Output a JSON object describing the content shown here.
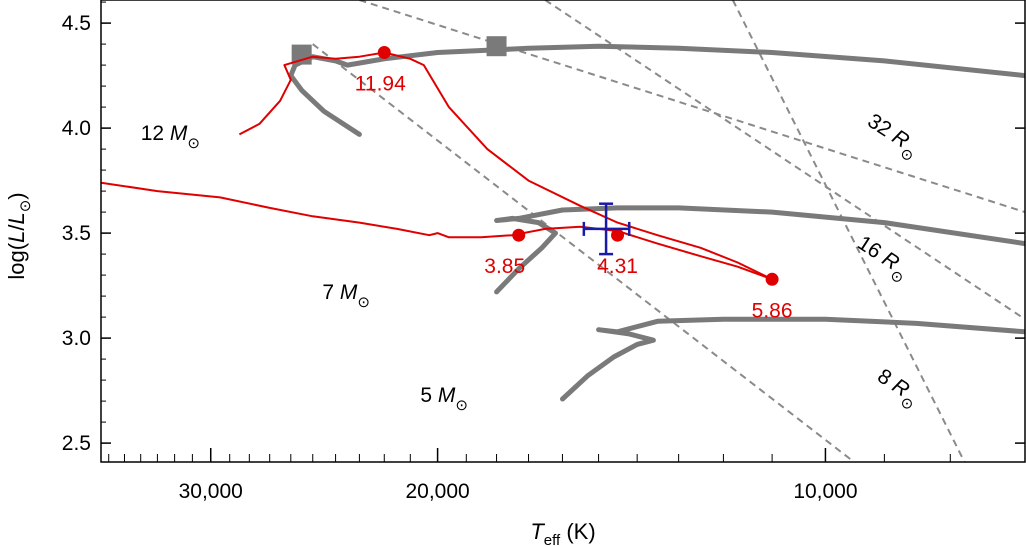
{
  "chart_data": {
    "type": "line",
    "xlabel": "T_eff (K)",
    "ylabel": "log(L/L_⊙)",
    "x_scale": "log",
    "x_reversed": true,
    "xlim": [
      36500,
      7000
    ],
    "ylim": [
      2.41,
      4.61
    ],
    "x_ticks": [
      {
        "value": 30000,
        "label": "30,000"
      },
      {
        "value": 20000,
        "label": "20,000"
      },
      {
        "value": 10000,
        "label": "10,000"
      }
    ],
    "y_ticks": [
      {
        "value": 2.5,
        "label": "2.5"
      },
      {
        "value": 3.0,
        "label": "3.0"
      },
      {
        "value": 3.5,
        "label": "3.5"
      },
      {
        "value": 4.0,
        "label": "4.0"
      },
      {
        "value": 4.5,
        "label": "4.5"
      }
    ],
    "tracks": [
      {
        "mass_label": "12",
        "points": [
          [
            23000,
            3.97
          ],
          [
            24500,
            4.08
          ],
          [
            25500,
            4.18
          ],
          [
            26000,
            4.25
          ],
          [
            25800,
            4.3
          ],
          [
            25000,
            4.34
          ],
          [
            24000,
            4.32
          ],
          [
            23500,
            4.3
          ],
          [
            22000,
            4.33
          ],
          [
            20000,
            4.36
          ],
          [
            17000,
            4.38
          ],
          [
            15000,
            4.39
          ],
          [
            13000,
            4.38
          ],
          [
            11000,
            4.36
          ],
          [
            9000,
            4.32
          ],
          [
            7000,
            4.25
          ]
        ],
        "squares": [
          [
            25500,
            4.35
          ],
          [
            18000,
            4.39
          ]
        ]
      },
      {
        "mass_label": "7",
        "points": [
          [
            18000,
            3.22
          ],
          [
            17300,
            3.33
          ],
          [
            16600,
            3.43
          ],
          [
            16200,
            3.5
          ],
          [
            16700,
            3.55
          ],
          [
            17500,
            3.57
          ],
          [
            18000,
            3.56
          ],
          [
            17300,
            3.57
          ],
          [
            16000,
            3.61
          ],
          [
            14500,
            3.62
          ],
          [
            13000,
            3.62
          ],
          [
            11000,
            3.6
          ],
          [
            9000,
            3.55
          ],
          [
            7000,
            3.45
          ]
        ],
        "squares": []
      },
      {
        "mass_label": "5",
        "points": [
          [
            16000,
            2.71
          ],
          [
            15300,
            2.82
          ],
          [
            14600,
            2.91
          ],
          [
            14000,
            2.97
          ],
          [
            13600,
            2.99
          ],
          [
            14200,
            3.02
          ],
          [
            15000,
            3.04
          ],
          [
            14500,
            3.03
          ],
          [
            13500,
            3.08
          ],
          [
            12000,
            3.09
          ],
          [
            10000,
            3.09
          ],
          [
            8500,
            3.07
          ],
          [
            7000,
            3.03
          ]
        ],
        "squares": []
      }
    ],
    "binary_tracks": [
      {
        "points": [
          [
            28500,
            3.97
          ],
          [
            27500,
            4.02
          ],
          [
            26500,
            4.13
          ],
          [
            26000,
            4.23
          ],
          [
            26300,
            4.3
          ],
          [
            25000,
            4.34
          ],
          [
            24000,
            4.33
          ],
          [
            23000,
            4.34
          ],
          [
            22000,
            4.36
          ],
          [
            21000,
            4.33
          ],
          [
            20500,
            4.3
          ],
          [
            19600,
            4.1
          ],
          [
            18300,
            3.9
          ],
          [
            17000,
            3.75
          ],
          [
            15500,
            3.63
          ],
          [
            14500,
            3.55
          ],
          [
            13500,
            3.49
          ],
          [
            12500,
            3.43
          ],
          [
            11700,
            3.36
          ],
          [
            11000,
            3.28
          ]
        ]
      },
      {
        "points": [
          [
            36500,
            3.74
          ],
          [
            33000,
            3.7
          ],
          [
            29500,
            3.67
          ],
          [
            27000,
            3.62
          ],
          [
            25000,
            3.58
          ],
          [
            23000,
            3.55
          ],
          [
            21500,
            3.52
          ],
          [
            20300,
            3.49
          ],
          [
            20000,
            3.5
          ],
          [
            19600,
            3.48
          ],
          [
            18500,
            3.48
          ],
          [
            17500,
            3.49
          ],
          [
            16500,
            3.52
          ],
          [
            15500,
            3.53
          ],
          [
            14500,
            3.51
          ],
          [
            13500,
            3.45
          ],
          [
            12500,
            3.39
          ],
          [
            11700,
            3.34
          ],
          [
            11000,
            3.28
          ]
        ]
      }
    ],
    "markers": [
      {
        "x": 22000,
        "y": 4.36,
        "label": "11.94"
      },
      {
        "x": 17300,
        "y": 3.49,
        "label": "3.85"
      },
      {
        "x": 14500,
        "y": 3.49,
        "label": "4.31"
      },
      {
        "x": 11000,
        "y": 3.28,
        "label": "5.86"
      }
    ],
    "observation": {
      "x": 14800,
      "y": 3.52,
      "x_err": 600,
      "y_err": 0.12
    },
    "radius_lines": [
      {
        "label": "32",
        "points": [
          [
            23000,
            4.61
          ],
          [
            7000,
            3.6
          ]
        ]
      },
      {
        "label": "16",
        "points": [
          [
            16500,
            4.61
          ],
          [
            7000,
            3.09
          ]
        ]
      },
      {
        "label": "8",
        "points": [
          [
            11800,
            4.61
          ],
          [
            7800,
            2.41
          ]
        ]
      },
      {
        "label": "",
        "points": [
          [
            25000,
            4.4
          ],
          [
            9500,
            2.41
          ]
        ]
      }
    ],
    "solar_symbol": "⊙",
    "grid": false,
    "legend": "none"
  }
}
